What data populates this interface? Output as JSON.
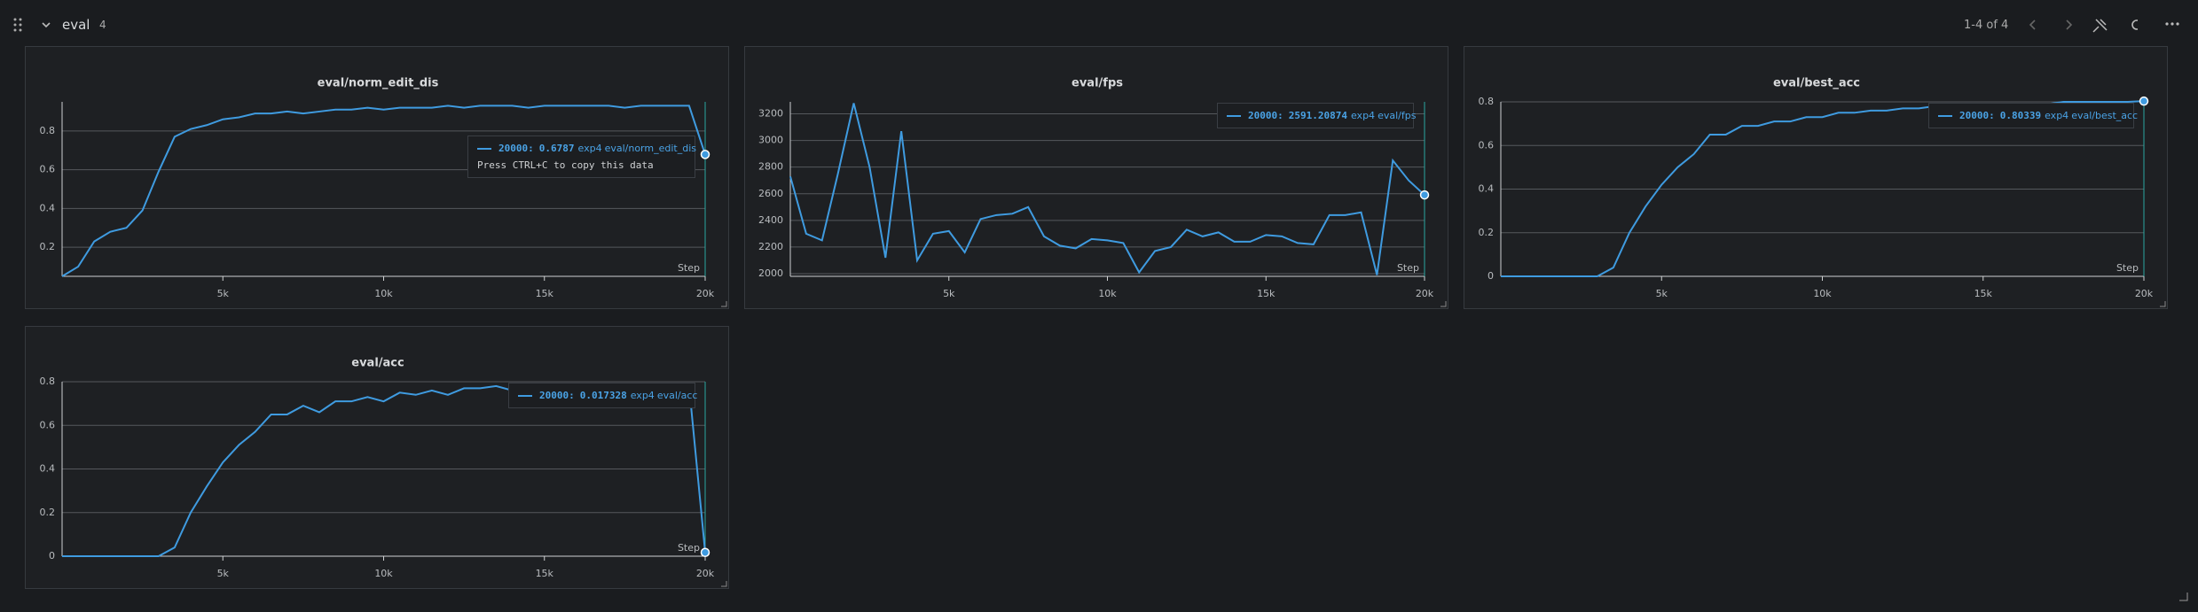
{
  "section": {
    "title": "eval",
    "count": 4,
    "pagination": "1-4 of 4"
  },
  "tooltip_hint": "Press CTRL+C to copy this data",
  "chart_data": [
    {
      "type": "line",
      "title": "eval/norm_edit_dis",
      "xlabel": "Step",
      "grid": true,
      "x": [
        0,
        500,
        1000,
        1500,
        2000,
        2500,
        3000,
        3500,
        4000,
        4500,
        5000,
        5500,
        6000,
        6500,
        7000,
        7500,
        8000,
        8500,
        9000,
        9500,
        10000,
        10500,
        11000,
        11500,
        12000,
        12500,
        13000,
        13500,
        14000,
        14500,
        15000,
        15500,
        16000,
        16500,
        17000,
        17500,
        18000,
        18500,
        19000,
        19500,
        20000
      ],
      "series": [
        {
          "name": "exp4",
          "color": "#3f9be0",
          "values": [
            0.05,
            0.1,
            0.23,
            0.28,
            0.3,
            0.39,
            0.59,
            0.77,
            0.81,
            0.83,
            0.86,
            0.87,
            0.89,
            0.89,
            0.9,
            0.89,
            0.9,
            0.91,
            0.91,
            0.92,
            0.91,
            0.92,
            0.92,
            0.92,
            0.93,
            0.92,
            0.93,
            0.93,
            0.93,
            0.92,
            0.93,
            0.93,
            0.93,
            0.93,
            0.93,
            0.92,
            0.93,
            0.93,
            0.93,
            0.93,
            0.6787
          ]
        }
      ],
      "xlim": [
        0,
        20000
      ],
      "xticks": [
        {
          "value": 5000,
          "label": "5k"
        },
        {
          "value": 10000,
          "label": "10k"
        },
        {
          "value": 15000,
          "label": "15k"
        },
        {
          "value": 20000,
          "label": "20k"
        }
      ],
      "ylim": [
        0.05,
        0.95
      ],
      "yticks": [
        0.2,
        0.4,
        0.6,
        0.8
      ]
    },
    {
      "type": "line",
      "title": "eval/fps",
      "xlabel": "Step",
      "grid": true,
      "x": [
        0,
        500,
        1000,
        1500,
        2000,
        2500,
        3000,
        3500,
        4000,
        4500,
        5000,
        5500,
        6000,
        6500,
        7000,
        7500,
        8000,
        8500,
        9000,
        9500,
        10000,
        10500,
        11000,
        11500,
        12000,
        12500,
        13000,
        13500,
        14000,
        14500,
        15000,
        15500,
        16000,
        16500,
        17000,
        17500,
        18000,
        18500,
        19000,
        19500,
        20000
      ],
      "series": [
        {
          "name": "exp4",
          "color": "#3f9be0",
          "values": [
            2730,
            2300,
            2250,
            2750,
            3280,
            2800,
            2120,
            3070,
            2100,
            2300,
            2320,
            2160,
            2410,
            2440,
            2450,
            2500,
            2280,
            2210,
            2190,
            2260,
            2250,
            2230,
            2010,
            2170,
            2200,
            2330,
            2280,
            2310,
            2240,
            2240,
            2290,
            2280,
            2230,
            2220,
            2440,
            2440,
            2460,
            1990,
            2850,
            2700,
            2591.20874
          ]
        }
      ],
      "xlim": [
        0,
        20000
      ],
      "xticks": [
        {
          "value": 5000,
          "label": "5k"
        },
        {
          "value": 10000,
          "label": "10k"
        },
        {
          "value": 15000,
          "label": "15k"
        },
        {
          "value": 20000,
          "label": "20k"
        }
      ],
      "ylim": [
        1980,
        3290
      ],
      "yticks": [
        2000,
        2200,
        2400,
        2600,
        2800,
        3000,
        3200
      ]
    },
    {
      "type": "line",
      "title": "eval/best_acc",
      "xlabel": "Step",
      "grid": true,
      "x": [
        0,
        500,
        1000,
        1500,
        2000,
        2500,
        3000,
        3500,
        4000,
        4500,
        5000,
        5500,
        6000,
        6500,
        7000,
        7500,
        8000,
        8500,
        9000,
        9500,
        10000,
        10500,
        11000,
        11500,
        12000,
        12500,
        13000,
        13500,
        14000,
        14500,
        15000,
        15500,
        16000,
        16500,
        17000,
        17500,
        18000,
        18500,
        19000,
        19500,
        20000
      ],
      "series": [
        {
          "name": "exp4",
          "color": "#3f9be0",
          "values": [
            0,
            0,
            0,
            0,
            0,
            0,
            0,
            0.04,
            0.2,
            0.32,
            0.42,
            0.5,
            0.56,
            0.65,
            0.65,
            0.69,
            0.69,
            0.71,
            0.71,
            0.73,
            0.73,
            0.75,
            0.75,
            0.76,
            0.76,
            0.77,
            0.77,
            0.78,
            0.78,
            0.78,
            0.78,
            0.79,
            0.79,
            0.79,
            0.79,
            0.8,
            0.8,
            0.8,
            0.8,
            0.8,
            0.80339
          ]
        }
      ],
      "xlim": [
        0,
        20000
      ],
      "xticks": [
        {
          "value": 5000,
          "label": "5k"
        },
        {
          "value": 10000,
          "label": "10k"
        },
        {
          "value": 15000,
          "label": "15k"
        },
        {
          "value": 20000,
          "label": "20k"
        }
      ],
      "ylim": [
        0,
        0.8
      ],
      "yticks": [
        0,
        0.2,
        0.4,
        0.6,
        0.8
      ]
    },
    {
      "type": "line",
      "title": "eval/acc",
      "xlabel": "Step",
      "grid": true,
      "x": [
        0,
        500,
        1000,
        1500,
        2000,
        2500,
        3000,
        3500,
        4000,
        4500,
        5000,
        5500,
        6000,
        6500,
        7000,
        7500,
        8000,
        8500,
        9000,
        9500,
        10000,
        10500,
        11000,
        11500,
        12000,
        12500,
        13000,
        13500,
        14000,
        14500,
        15000,
        15500,
        16000,
        16500,
        17000,
        17500,
        18000,
        18500,
        19000,
        19500,
        20000
      ],
      "series": [
        {
          "name": "exp4",
          "color": "#3f9be0",
          "values": [
            0,
            0,
            0,
            0,
            0,
            0,
            0,
            0.04,
            0.2,
            0.32,
            0.43,
            0.51,
            0.57,
            0.65,
            0.65,
            0.69,
            0.66,
            0.71,
            0.71,
            0.73,
            0.71,
            0.75,
            0.74,
            0.76,
            0.74,
            0.77,
            0.77,
            0.78,
            0.76,
            0.77,
            0.78,
            0.77,
            0.76,
            0.78,
            0.77,
            0.78,
            0.77,
            0.78,
            0.77,
            0.78,
            0.017328
          ]
        }
      ],
      "xlim": [
        0,
        20000
      ],
      "xticks": [
        {
          "value": 5000,
          "label": "5k"
        },
        {
          "value": 10000,
          "label": "10k"
        },
        {
          "value": 15000,
          "label": "15k"
        },
        {
          "value": 20000,
          "label": "20k"
        }
      ],
      "ylim": [
        0,
        0.8
      ],
      "yticks": [
        0,
        0.2,
        0.4,
        0.6,
        0.8
      ]
    }
  ]
}
